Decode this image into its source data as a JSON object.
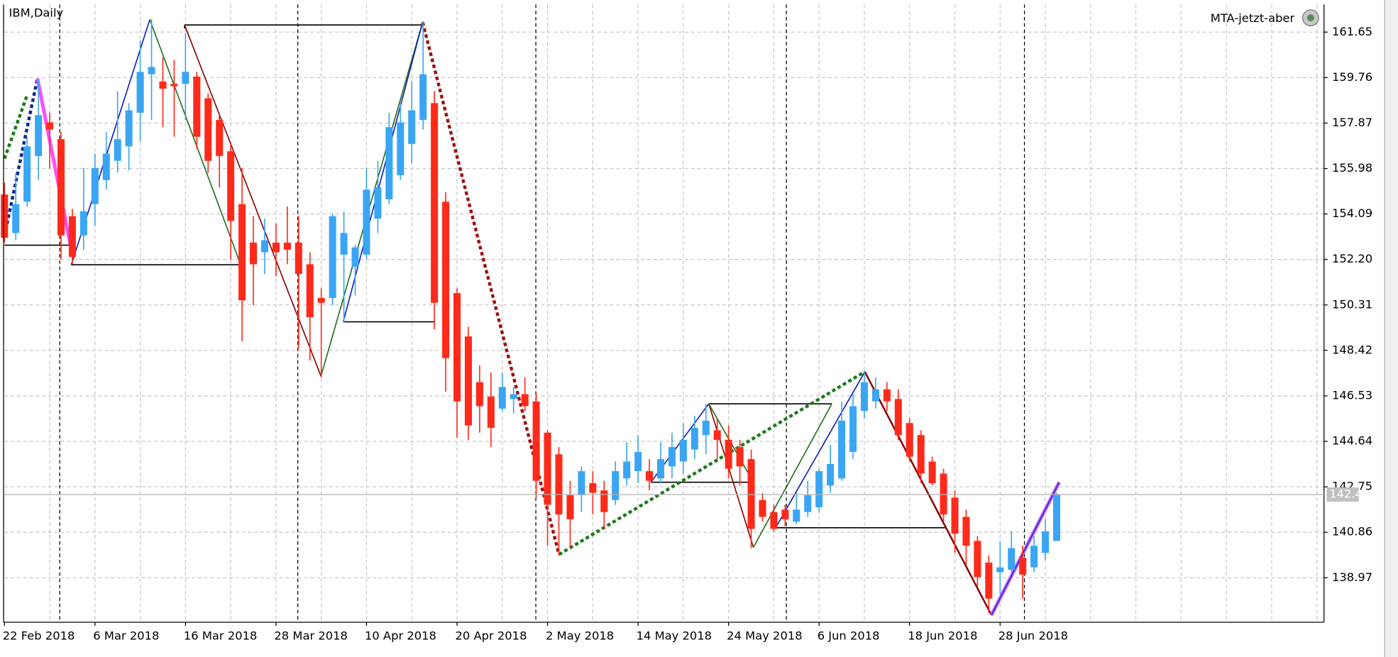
{
  "chart_data": {
    "type": "candlestick",
    "title": "IBM,Daily",
    "indicator": "MTA-jetzt-aber",
    "up_color": "#3aa6f3",
    "down_color": "#ff2a1a",
    "grid": true,
    "ylim": [
      137.12,
      162.8
    ],
    "yticks": [
      161.65,
      159.76,
      157.87,
      155.98,
      154.09,
      {
        "value": 152.2,
        "label": "152.20"
      },
      150.31,
      148.42,
      146.53,
      144.64,
      142.75,
      140.86,
      138.97
    ],
    "categories": [
      "22 Feb 2018",
      null,
      null,
      null,
      null,
      null,
      null,
      null,
      "6 Mar 2018",
      null,
      null,
      null,
      null,
      null,
      null,
      null,
      "16 Mar 2018",
      null,
      null,
      null,
      null,
      null,
      null,
      null,
      "28 Mar 2018",
      null,
      null,
      null,
      null,
      null,
      null,
      null,
      "10 Apr 2018",
      null,
      null,
      null,
      null,
      null,
      null,
      null,
      "20 Apr 2018",
      null,
      null,
      null,
      null,
      null,
      null,
      null,
      "2 May 2018",
      null,
      null,
      null,
      null,
      null,
      null,
      null,
      "14 May 2018",
      null,
      null,
      null,
      null,
      null,
      null,
      null,
      "24 May 2018",
      null,
      null,
      null,
      null,
      null,
      null,
      null,
      "6 Jun 2018",
      null,
      null,
      null,
      null,
      null,
      null,
      null,
      "18 Jun 2018",
      null,
      null,
      null,
      null,
      null,
      null,
      null,
      "28 Jun 2018",
      null,
      null,
      null,
      null,
      null
    ],
    "open": [
      154.9,
      153.3,
      154.6,
      156.5,
      157.9,
      157.2,
      154.0,
      153.2,
      154.5,
      155.5,
      156.3,
      156.9,
      158.3,
      159.9,
      159.6,
      159.5,
      159.5,
      159.8,
      158.9,
      158.0,
      156.7,
      154.5,
      152.9,
      152.5,
      152.9,
      152.9,
      152.9,
      152.0,
      150.6,
      150.6,
      152.4,
      151.9,
      152.4,
      153.9,
      154.7,
      155.7,
      157.0,
      158.0,
      158.7,
      154.6,
      150.8,
      149.0,
      147.1,
      146.5,
      146.0,
      146.4,
      146.6,
      146.3,
      145.0,
      144.1,
      142.4,
      142.4,
      142.9,
      142.6,
      142.2,
      143.1,
      143.4,
      143.4,
      143.1,
      143.6,
      143.8,
      144.3,
      144.9,
      145.1,
      144.7,
      144.4,
      143.9,
      142.2,
      141.7,
      141.8,
      141.3,
      141.7,
      141.9,
      142.8,
      143.1,
      144.2,
      145.9,
      146.3,
      146.8,
      146.4,
      145.4,
      144.9,
      143.8,
      143.3,
      142.3,
      141.5,
      140.5,
      139.6,
      139.2,
      139.3,
      139.8,
      139.4,
      140.0,
      140.5
    ],
    "high": [
      155.4,
      155.8,
      157.3,
      159.7,
      158.3,
      157.5,
      154.3,
      156.0,
      156.6,
      157.5,
      159.2,
      158.7,
      161.3,
      162.2,
      160.6,
      160.5,
      161.6,
      160.0,
      159.1,
      158.3,
      157.0,
      156.0,
      154.0,
      153.9,
      153.7,
      154.4,
      154.0,
      152.5,
      151.0,
      154.1,
      154.2,
      152.8,
      156.0,
      156.3,
      158.3,
      158.7,
      159.6,
      162.1,
      159.2,
      155.0,
      151.0,
      149.4,
      147.8,
      147.5,
      147.5,
      146.9,
      147.3,
      146.6,
      145.1,
      144.4,
      143.0,
      143.6,
      143.4,
      143.0,
      143.8,
      144.6,
      144.9,
      143.9,
      144.6,
      145.0,
      145.4,
      145.7,
      146.2,
      145.6,
      145.3,
      144.7,
      144.3,
      142.5,
      142.0,
      142.0,
      142.5,
      143.0,
      143.5,
      144.5,
      146.3,
      146.6,
      147.5,
      147.3,
      147.1,
      146.8,
      145.6,
      145.1,
      144.0,
      143.5,
      142.6,
      141.8,
      140.7,
      139.9,
      140.5,
      140.9,
      140.3,
      140.7,
      141.4,
      142.5
    ],
    "low": [
      152.9,
      153.0,
      154.4,
      155.5,
      156.0,
      152.2,
      152.0,
      152.6,
      153.6,
      155.1,
      155.8,
      155.9,
      157.1,
      158.0,
      157.7,
      157.3,
      158.0,
      156.8,
      155.8,
      155.2,
      152.2,
      148.8,
      150.3,
      151.6,
      151.5,
      152.0,
      148.5,
      148.0,
      147.3,
      150.3,
      149.6,
      150.7,
      152.2,
      153.3,
      154.5,
      155.5,
      156.2,
      157.6,
      149.3,
      146.7,
      144.8,
      144.7,
      145.0,
      144.4,
      145.9,
      145.8,
      145.9,
      142.3,
      140.3,
      139.9,
      140.2,
      141.7,
      141.6,
      141.0,
      142.0,
      142.8,
      142.9,
      142.6,
      142.9,
      143.1,
      143.3,
      143.9,
      144.1,
      143.9,
      143.1,
      142.8,
      140.2,
      141.3,
      140.9,
      141.1,
      141.2,
      141.5,
      141.7,
      142.5,
      143.0,
      143.9,
      145.6,
      146.0,
      145.9,
      144.7,
      143.8,
      142.9,
      142.8,
      141.3,
      140.0,
      139.5,
      138.6,
      137.5,
      138.3,
      139.2,
      138.1,
      139.2,
      139.7,
      140.6
    ],
    "close": [
      153.1,
      154.5,
      156.9,
      158.2,
      157.6,
      153.2,
      152.3,
      154.2,
      156.0,
      156.6,
      157.2,
      158.4,
      160.0,
      160.2,
      159.3,
      159.4,
      160.0,
      157.3,
      156.3,
      156.5,
      153.8,
      150.5,
      152.0,
      153.0,
      152.5,
      152.6,
      151.6,
      149.8,
      150.4,
      154.0,
      153.3,
      152.7,
      155.1,
      155.2,
      157.7,
      157.9,
      158.4,
      159.9,
      150.4,
      148.1,
      146.3,
      145.3,
      146.1,
      145.2,
      146.9,
      146.6,
      146.1,
      143.0,
      142.0,
      141.6,
      141.4,
      143.4,
      142.5,
      141.7,
      143.4,
      143.8,
      144.2,
      143.0,
      143.9,
      144.4,
      144.7,
      145.2,
      145.5,
      144.7,
      143.5,
      143.6,
      141.0,
      141.5,
      141.0,
      141.4,
      141.8,
      142.4,
      143.4,
      143.7,
      145.5,
      146.1,
      147.1,
      146.8,
      146.3,
      144.9,
      144.0,
      143.3,
      142.9,
      141.6,
      140.8,
      140.3,
      139.0,
      138.1,
      139.4,
      140.2,
      139.1,
      140.3,
      140.9,
      142.43
    ]
  }
}
